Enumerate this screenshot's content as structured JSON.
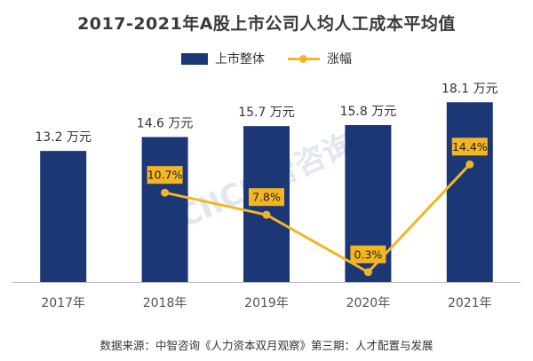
{
  "chart_data": {
    "type": "bar",
    "title": "2017-2021年A股上市公司人均人工成本平均值",
    "categories": [
      "2017年",
      "2018年",
      "2019年",
      "2020年",
      "2021年"
    ],
    "series": [
      {
        "name": "上市整体",
        "type": "bar",
        "values": [
          13.2,
          14.6,
          15.7,
          15.8,
          18.1
        ],
        "value_labels": [
          "13.2 万元",
          "14.6 万元",
          "15.7 万元",
          "15.8 万元",
          "18.1 万元"
        ],
        "color": "#1c3776"
      },
      {
        "name": "涨幅",
        "type": "line",
        "values": [
          null,
          10.7,
          7.8,
          0.3,
          14.4
        ],
        "value_labels": [
          "",
          "10.7%",
          "7.8%",
          "0.3%",
          "14.4%"
        ],
        "color": "#f2b624"
      }
    ],
    "ylim_bar": [
      0,
      20
    ],
    "ylim_line": [
      -1,
      25
    ],
    "legend_position": "top-center",
    "grid": false,
    "source": "数据来源：中智咨询《人力资本双月观察》第三期：人才配置与发展",
    "watermark": "CIIC中智咨询"
  }
}
